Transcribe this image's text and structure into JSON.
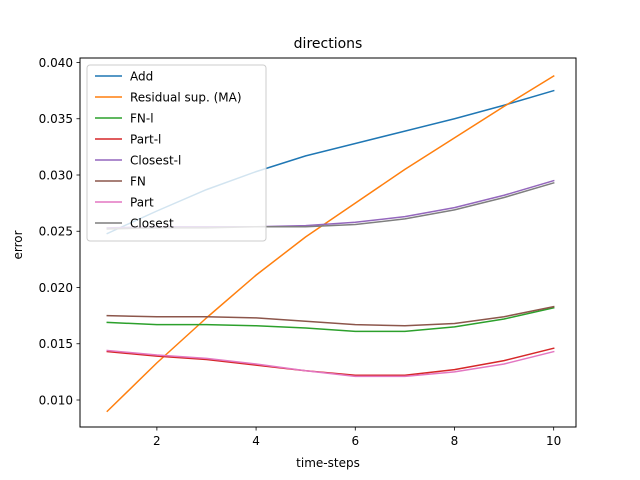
{
  "chart_data": {
    "type": "line",
    "title": "directions",
    "xlabel": "time-steps",
    "ylabel": "error",
    "xlim": [
      0.45,
      10.45
    ],
    "ylim": [
      0.0076,
      0.0404
    ],
    "xticks": [
      2,
      4,
      6,
      8,
      10
    ],
    "xtick_labels": [
      "2",
      "4",
      "6",
      "8",
      "10"
    ],
    "yticks": [
      0.01,
      0.015,
      0.02,
      0.025,
      0.03,
      0.035,
      0.04
    ],
    "ytick_labels": [
      "0.010",
      "0.015",
      "0.020",
      "0.025",
      "0.030",
      "0.035",
      "0.040"
    ],
    "grid": false,
    "legend_position": "top-left",
    "x": [
      1,
      2,
      3,
      4,
      5,
      6,
      7,
      8,
      9,
      10
    ],
    "series": [
      {
        "name": "Add",
        "color": "#1f77b4",
        "values": [
          0.0248,
          0.0268,
          0.0287,
          0.0303,
          0.0317,
          0.0328,
          0.0339,
          0.035,
          0.0362,
          0.0375
        ]
      },
      {
        "name": "Residual sup. (MA)",
        "color": "#ff7f0e",
        "values": [
          0.009,
          0.0133,
          0.0173,
          0.0211,
          0.0245,
          0.0275,
          0.0305,
          0.0333,
          0.0361,
          0.0388
        ]
      },
      {
        "name": "FN-l",
        "color": "#2ca02c",
        "values": [
          0.0169,
          0.0167,
          0.0167,
          0.0166,
          0.0164,
          0.0161,
          0.0161,
          0.0165,
          0.0172,
          0.0182
        ]
      },
      {
        "name": "Part-l",
        "color": "#d62728",
        "values": [
          0.0143,
          0.0139,
          0.0136,
          0.0131,
          0.0126,
          0.0122,
          0.0122,
          0.0127,
          0.0135,
          0.0146
        ]
      },
      {
        "name": "Closest-l",
        "color": "#9467bd",
        "values": [
          0.0253,
          0.0254,
          0.0254,
          0.0254,
          0.0255,
          0.0258,
          0.0263,
          0.0271,
          0.0282,
          0.0295
        ]
      },
      {
        "name": "FN",
        "color": "#8c564b",
        "values": [
          0.0175,
          0.0174,
          0.0174,
          0.0173,
          0.017,
          0.0167,
          0.0166,
          0.0168,
          0.0174,
          0.0183
        ]
      },
      {
        "name": "Part",
        "color": "#e377c2",
        "values": [
          0.0144,
          0.014,
          0.0137,
          0.0132,
          0.0126,
          0.0121,
          0.0121,
          0.0125,
          0.0132,
          0.0143
        ]
      },
      {
        "name": "Closest",
        "color": "#7f7f7f",
        "values": [
          0.0252,
          0.0253,
          0.0253,
          0.0254,
          0.0254,
          0.0256,
          0.0261,
          0.0269,
          0.028,
          0.0293
        ]
      }
    ]
  }
}
